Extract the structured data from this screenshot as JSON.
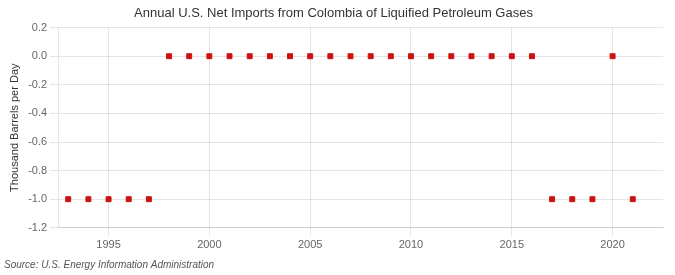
{
  "chart_data": {
    "type": "scatter",
    "title": "Annual U.S. Net Imports from Colombia of Liquified Petroleum Gases",
    "y_label": "Thousand Barrels per Day",
    "annotations": [
      "Source: U.S. Energy Information Administration"
    ],
    "x": [
      1993,
      1994,
      1995,
      1996,
      1997,
      1998,
      1999,
      2000,
      2001,
      2002,
      2003,
      2004,
      2005,
      2006,
      2007,
      2008,
      2009,
      2010,
      2011,
      2012,
      2013,
      2014,
      2015,
      2016,
      2017,
      2018,
      2019,
      2020,
      2021
    ],
    "values": [
      -1,
      -1,
      -1,
      -1,
      -1,
      0,
      0,
      0,
      0,
      0,
      0,
      0,
      0,
      0,
      0,
      0,
      0,
      0,
      0,
      0,
      0,
      0,
      0,
      0,
      -1,
      -1,
      -1,
      0,
      -1
    ],
    "color": "#cc1111",
    "marker": "square",
    "ylim": [
      -1.2,
      0.2
    ],
    "yticks": [
      0.2,
      {
        "value": 0,
        "label": "0.0"
      },
      -0.2,
      -0.4,
      -0.6,
      -0.8,
      {
        "value": -1,
        "label": "-1.0"
      },
      -1.2
    ],
    "xlim": [
      1992.5,
      2022.5
    ],
    "xticks": [
      1995,
      2000,
      2005,
      2010,
      2015,
      2020
    ],
    "grid": true
  }
}
